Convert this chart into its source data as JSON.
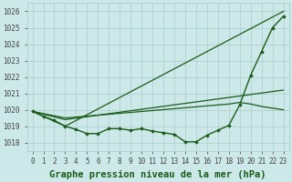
{
  "background_color": "#cce8e8",
  "grid_color": "#aacccc",
  "line_color": "#1a5c1a",
  "marker_color": "#1a5c1a",
  "title": "Graphe pression niveau de la mer (hPa)",
  "ylim": [
    1017.5,
    1026.5
  ],
  "xlim": [
    -0.5,
    23.5
  ],
  "yticks": [
    1018,
    1019,
    1020,
    1021,
    1022,
    1023,
    1024,
    1025,
    1026
  ],
  "xticks": [
    0,
    1,
    2,
    3,
    4,
    5,
    6,
    7,
    8,
    9,
    10,
    11,
    12,
    13,
    14,
    15,
    16,
    17,
    18,
    19,
    20,
    21,
    22,
    23
  ],
  "series": [
    {
      "x": [
        0,
        1,
        2,
        3,
        4,
        5,
        6,
        7,
        8,
        9,
        10,
        11,
        12,
        13,
        14,
        15,
        16,
        17,
        18,
        19,
        20,
        21,
        22,
        23
      ],
      "y": [
        1019.9,
        1019.6,
        1019.35,
        1019.0,
        1018.8,
        1018.55,
        1018.55,
        1018.85,
        1018.85,
        1018.75,
        1018.85,
        1018.7,
        1018.6,
        1018.5,
        1018.05,
        1018.05,
        1018.45,
        1018.75,
        1019.05,
        1020.3,
        1022.1,
        1023.55,
        1025.0,
        1025.7
      ],
      "marker": true,
      "linewidth": 1.0
    },
    {
      "x": [
        0,
        3,
        23
      ],
      "y": [
        1019.9,
        1019.0,
        1026.0
      ],
      "marker": false,
      "linewidth": 0.9
    },
    {
      "x": [
        0,
        3,
        23
      ],
      "y": [
        1019.9,
        1019.4,
        1021.2
      ],
      "marker": false,
      "linewidth": 0.9
    },
    {
      "x": [
        0,
        3,
        18,
        19,
        20,
        21,
        22,
        23
      ],
      "y": [
        1019.9,
        1019.5,
        1020.35,
        1020.45,
        1020.35,
        1020.2,
        1020.1,
        1020.0
      ],
      "marker": false,
      "linewidth": 0.9
    }
  ],
  "title_fontsize": 7.5,
  "tick_fontsize": 5.5
}
